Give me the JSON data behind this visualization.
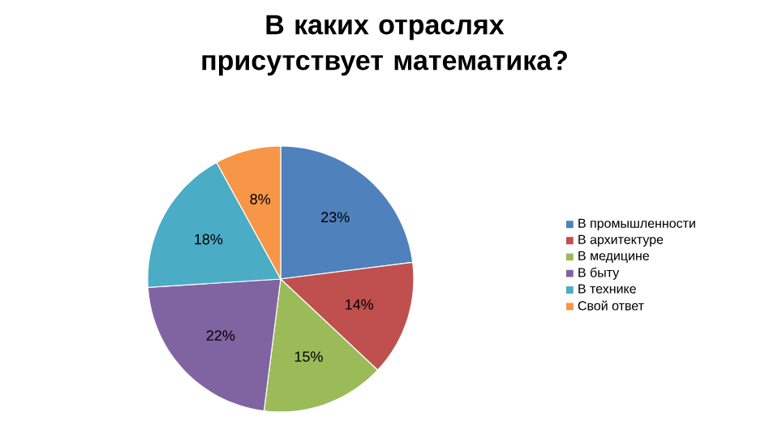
{
  "chart_data": {
    "type": "pie",
    "title": "В каких отраслях присутствует математика?",
    "categories": [
      "В промышленности",
      "В архитектуре",
      "В медицине",
      "В быту",
      "В технике",
      "Свой ответ"
    ],
    "values": [
      23,
      14,
      15,
      22,
      18,
      8
    ],
    "value_labels": [
      "23%",
      "14%",
      "15%",
      "22%",
      "18%",
      "8%"
    ],
    "colors": [
      "#4f81bd",
      "#c0504d",
      "#9bbb59",
      "#8064a2",
      "#4bacc6",
      "#f79646"
    ],
    "legend": "right"
  }
}
